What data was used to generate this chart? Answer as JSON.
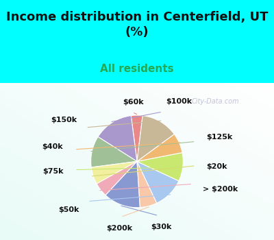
{
  "title": "Income distribution in Centerfield, UT\n(%)",
  "subtitle": "All residents",
  "background_top": "#00FFFF",
  "background_chart_grad_tl": "#c8ede0",
  "background_chart_grad_br": "#e8f8f8",
  "labels": [
    "$60k",
    "$100k",
    "$125k",
    "$20k",
    "> $200k",
    "$30k",
    "$200k",
    "$50k",
    "$75k",
    "$40k",
    "$150k"
  ],
  "values": [
    4,
    14,
    11,
    6,
    5,
    13,
    6,
    11,
    10,
    7,
    13
  ],
  "colors": [
    "#e88888",
    "#a898cc",
    "#a0c098",
    "#f0f0a0",
    "#f0aab8",
    "#8898d0",
    "#f8c8a8",
    "#a8c8f0",
    "#c8e870",
    "#f0b870",
    "#c8b898"
  ],
  "label_colors": {
    "$60k": "#cc4444",
    "$100k": "#8888cc",
    "$125k": "#88aa88",
    "$20k": "#cccc44",
    "> $200k": "#cc88aa",
    "$30k": "#6688cc",
    "$200k": "#ccaa88",
    "$50k": "#88aacc",
    "$75k": "#aacc44",
    "$40k": "#ccaa44",
    "$150k": "#aaaa88"
  },
  "title_fontsize": 13,
  "subtitle_fontsize": 11,
  "subtitle_color": "#22aa55",
  "title_color": "#111111",
  "label_fontsize": 8,
  "watermark": "City-Data.com",
  "startangle": 83
}
